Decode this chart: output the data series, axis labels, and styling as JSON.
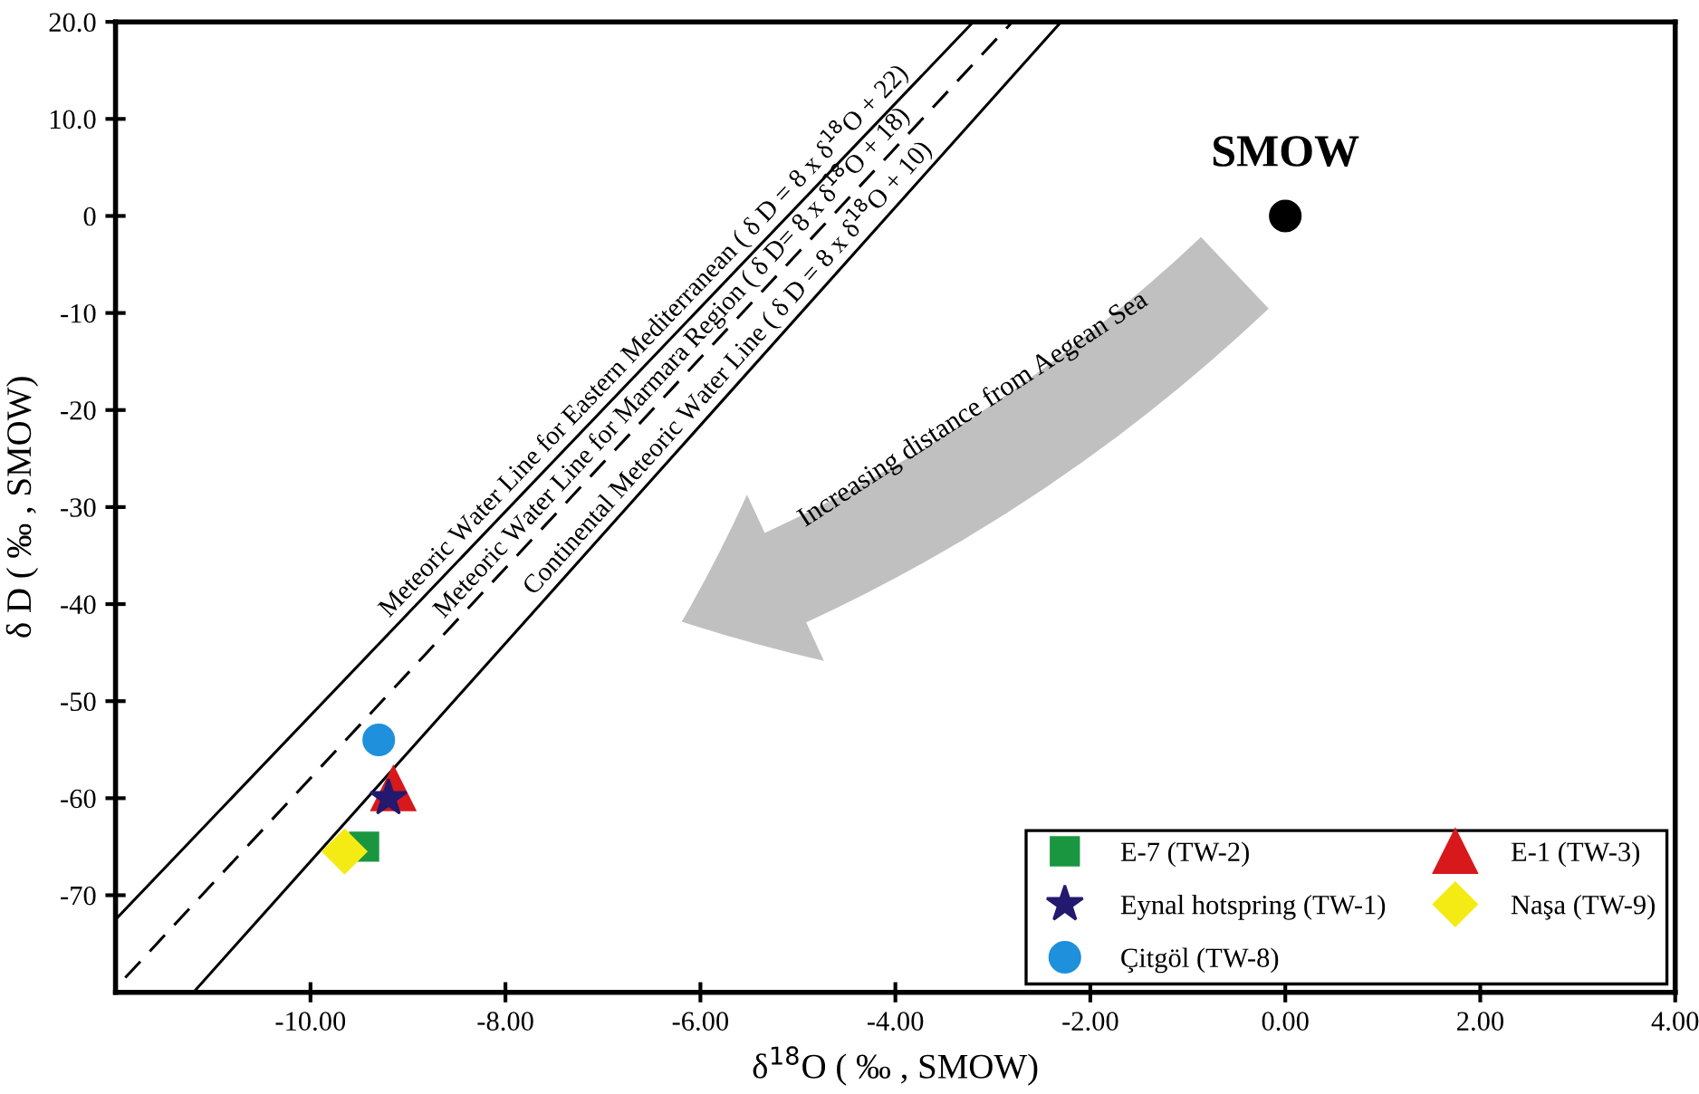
{
  "chart_data": {
    "type": "scatter",
    "xlabel": "δ$^{18}$O ( ‰ , SMOW)",
    "ylabel": "δ D ( ‰ , SMOW)",
    "xlim": [
      -12,
      4
    ],
    "ylim": [
      -80,
      20
    ],
    "xticks": [
      {
        "value": -10,
        "label": "-10.00"
      },
      {
        "value": -8,
        "label": "-8.00"
      },
      {
        "value": -6,
        "label": "-6.00"
      },
      {
        "value": -4,
        "label": "-4.00"
      },
      {
        "value": -2,
        "label": "-2.00"
      },
      {
        "value": 0,
        "label": "0.00"
      },
      {
        "value": 2,
        "label": "2.00"
      },
      {
        "value": 4,
        "label": "4.00"
      }
    ],
    "yticks": [
      {
        "value": 20,
        "label": "20.0"
      },
      {
        "value": 10,
        "label": "10.0"
      },
      0,
      -10,
      -20,
      -30,
      -40,
      -50,
      -60,
      -70
    ],
    "grid": false,
    "legend": "bottom right",
    "annotations": [
      "Increasing distance from Aegean Sea"
    ],
    "series": [
      {
        "type": "line",
        "name": "Meteoric Water Line for Eastern Mediterranean ( δ D = 8 x δ$^{18}$O + 22)",
        "color": "#000000",
        "line_style": "solid",
        "x": [
          -12,
          -3.2
        ],
        "values": [
          -72.5,
          20
        ]
      },
      {
        "type": "line",
        "name": "Meteoric Water Line for Marmara Region ( δ D= 8 x δ$^{18}$O + 18)",
        "color": "#000000",
        "line_style": "dashed",
        "x": [
          -11.9,
          -2.8
        ],
        "values": [
          -78.5,
          20
        ]
      },
      {
        "type": "line",
        "name": "Continental Meteoric Water Line ( δ D = 8 x δ$^{18}$O + 10)",
        "color": "#000000",
        "line_style": "solid",
        "x": [
          -11.2,
          -2.3
        ],
        "values": [
          -80,
          20
        ]
      },
      {
        "name": "SMOW",
        "color": "#000000",
        "marker": "circle",
        "x": [
          0
        ],
        "values": [
          0
        ]
      },
      {
        "name": "E-7 (TW-2)",
        "color": "#1a9641",
        "marker": "square",
        "x": [
          -9.45
        ],
        "values": [
          -65
        ]
      },
      {
        "name": "E-1 (TW-3)",
        "color": "#d7191c",
        "marker": "triangle",
        "x": [
          -9.15
        ],
        "values": [
          -59
        ]
      },
      {
        "name": "Eynal hotspring (TW-1)",
        "color": "#23196e",
        "marker": "star",
        "x": [
          -9.2
        ],
        "values": [
          -60
        ]
      },
      {
        "name": "Naşa (TW-9)",
        "color": "#f5eb14",
        "marker": "diamond",
        "x": [
          -9.65
        ],
        "values": [
          -65.5
        ]
      },
      {
        "name": "Çitgöl (TW-8)",
        "color": "#1e90dc",
        "marker": "circle",
        "x": [
          -9.3
        ],
        "values": [
          -54
        ]
      }
    ]
  }
}
